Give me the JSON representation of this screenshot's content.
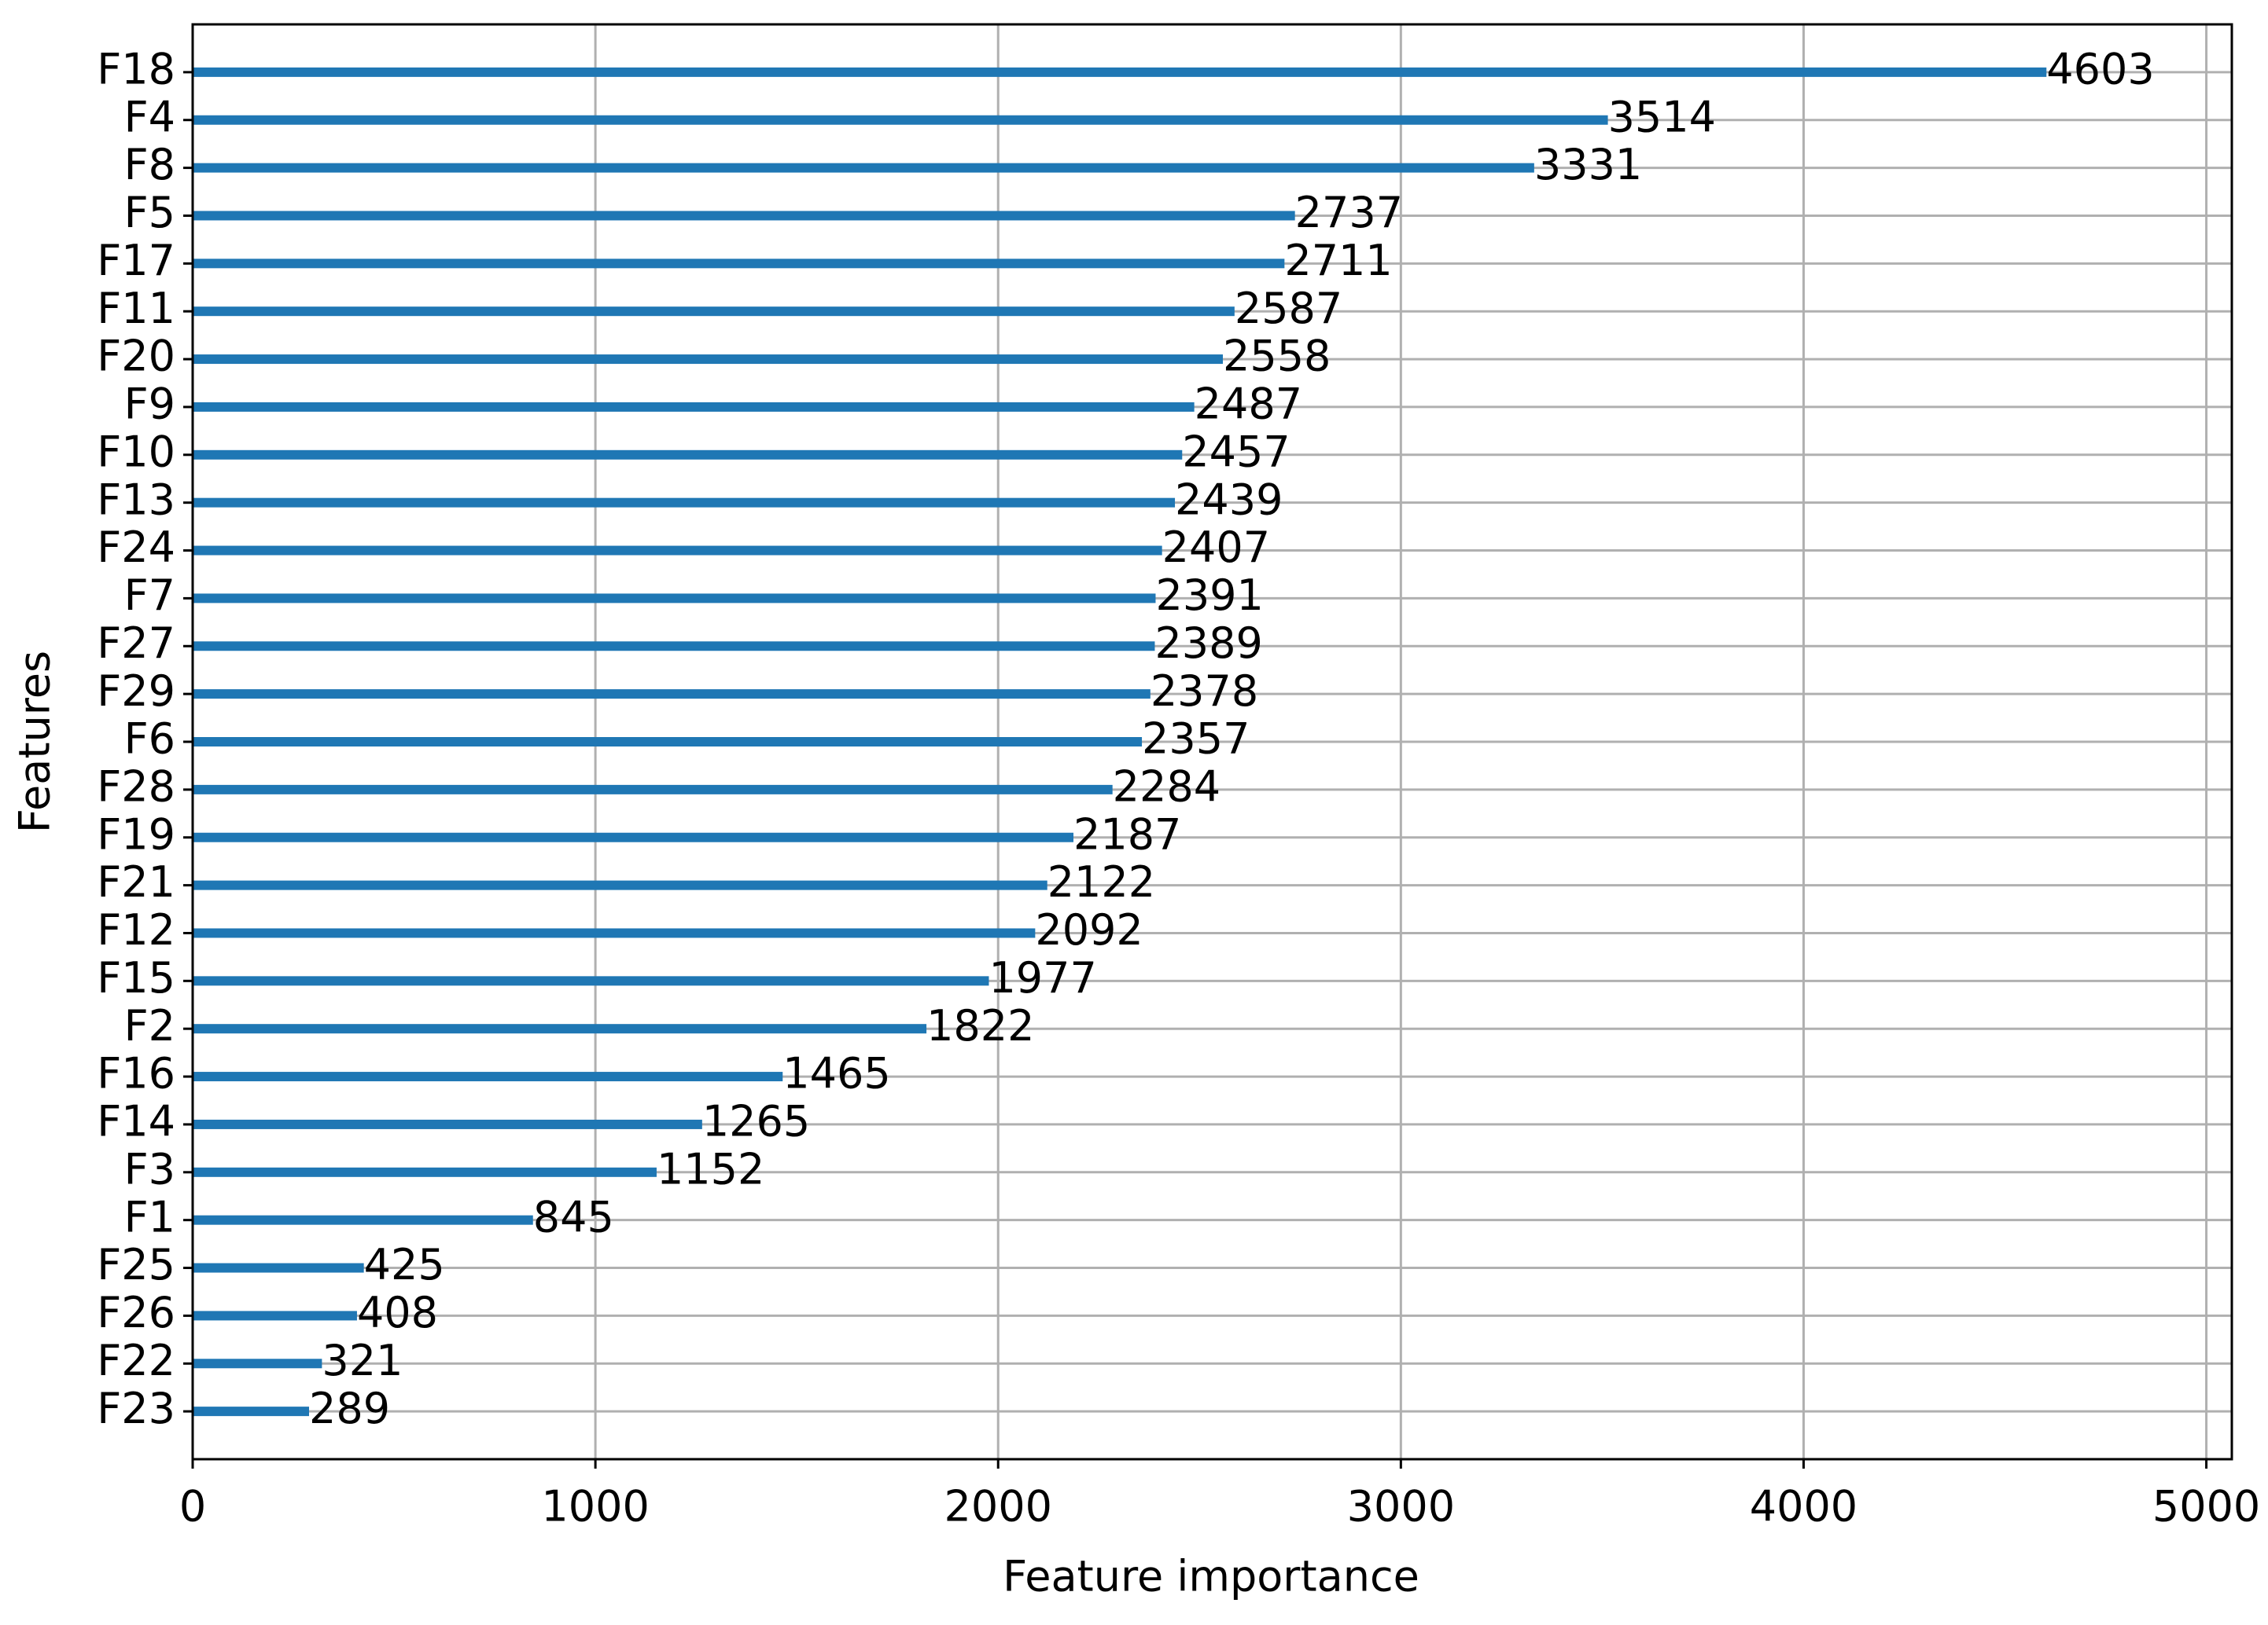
{
  "chart_data": {
    "type": "barh",
    "xlabel": "Feature importance",
    "ylabel": "Features",
    "categories": [
      "F18",
      "F4",
      "F8",
      "F5",
      "F17",
      "F11",
      "F20",
      "F9",
      "F10",
      "F13",
      "F24",
      "F7",
      "F27",
      "F29",
      "F6",
      "F28",
      "F19",
      "F21",
      "F12",
      "F15",
      "F2",
      "F16",
      "F14",
      "F3",
      "F1",
      "F25",
      "F26",
      "F22",
      "F23"
    ],
    "values": [
      4603,
      3514,
      3331,
      2737,
      2711,
      2587,
      2558,
      2487,
      2457,
      2439,
      2407,
      2391,
      2389,
      2378,
      2357,
      2284,
      2187,
      2122,
      2092,
      1977,
      1822,
      1465,
      1265,
      1152,
      845,
      425,
      408,
      321,
      289
    ],
    "color": "#1f77b4",
    "xlim": [
      0,
      5063.3
    ],
    "xticks": [
      0,
      1000,
      2000,
      3000,
      4000,
      5000
    ],
    "grid": true
  }
}
